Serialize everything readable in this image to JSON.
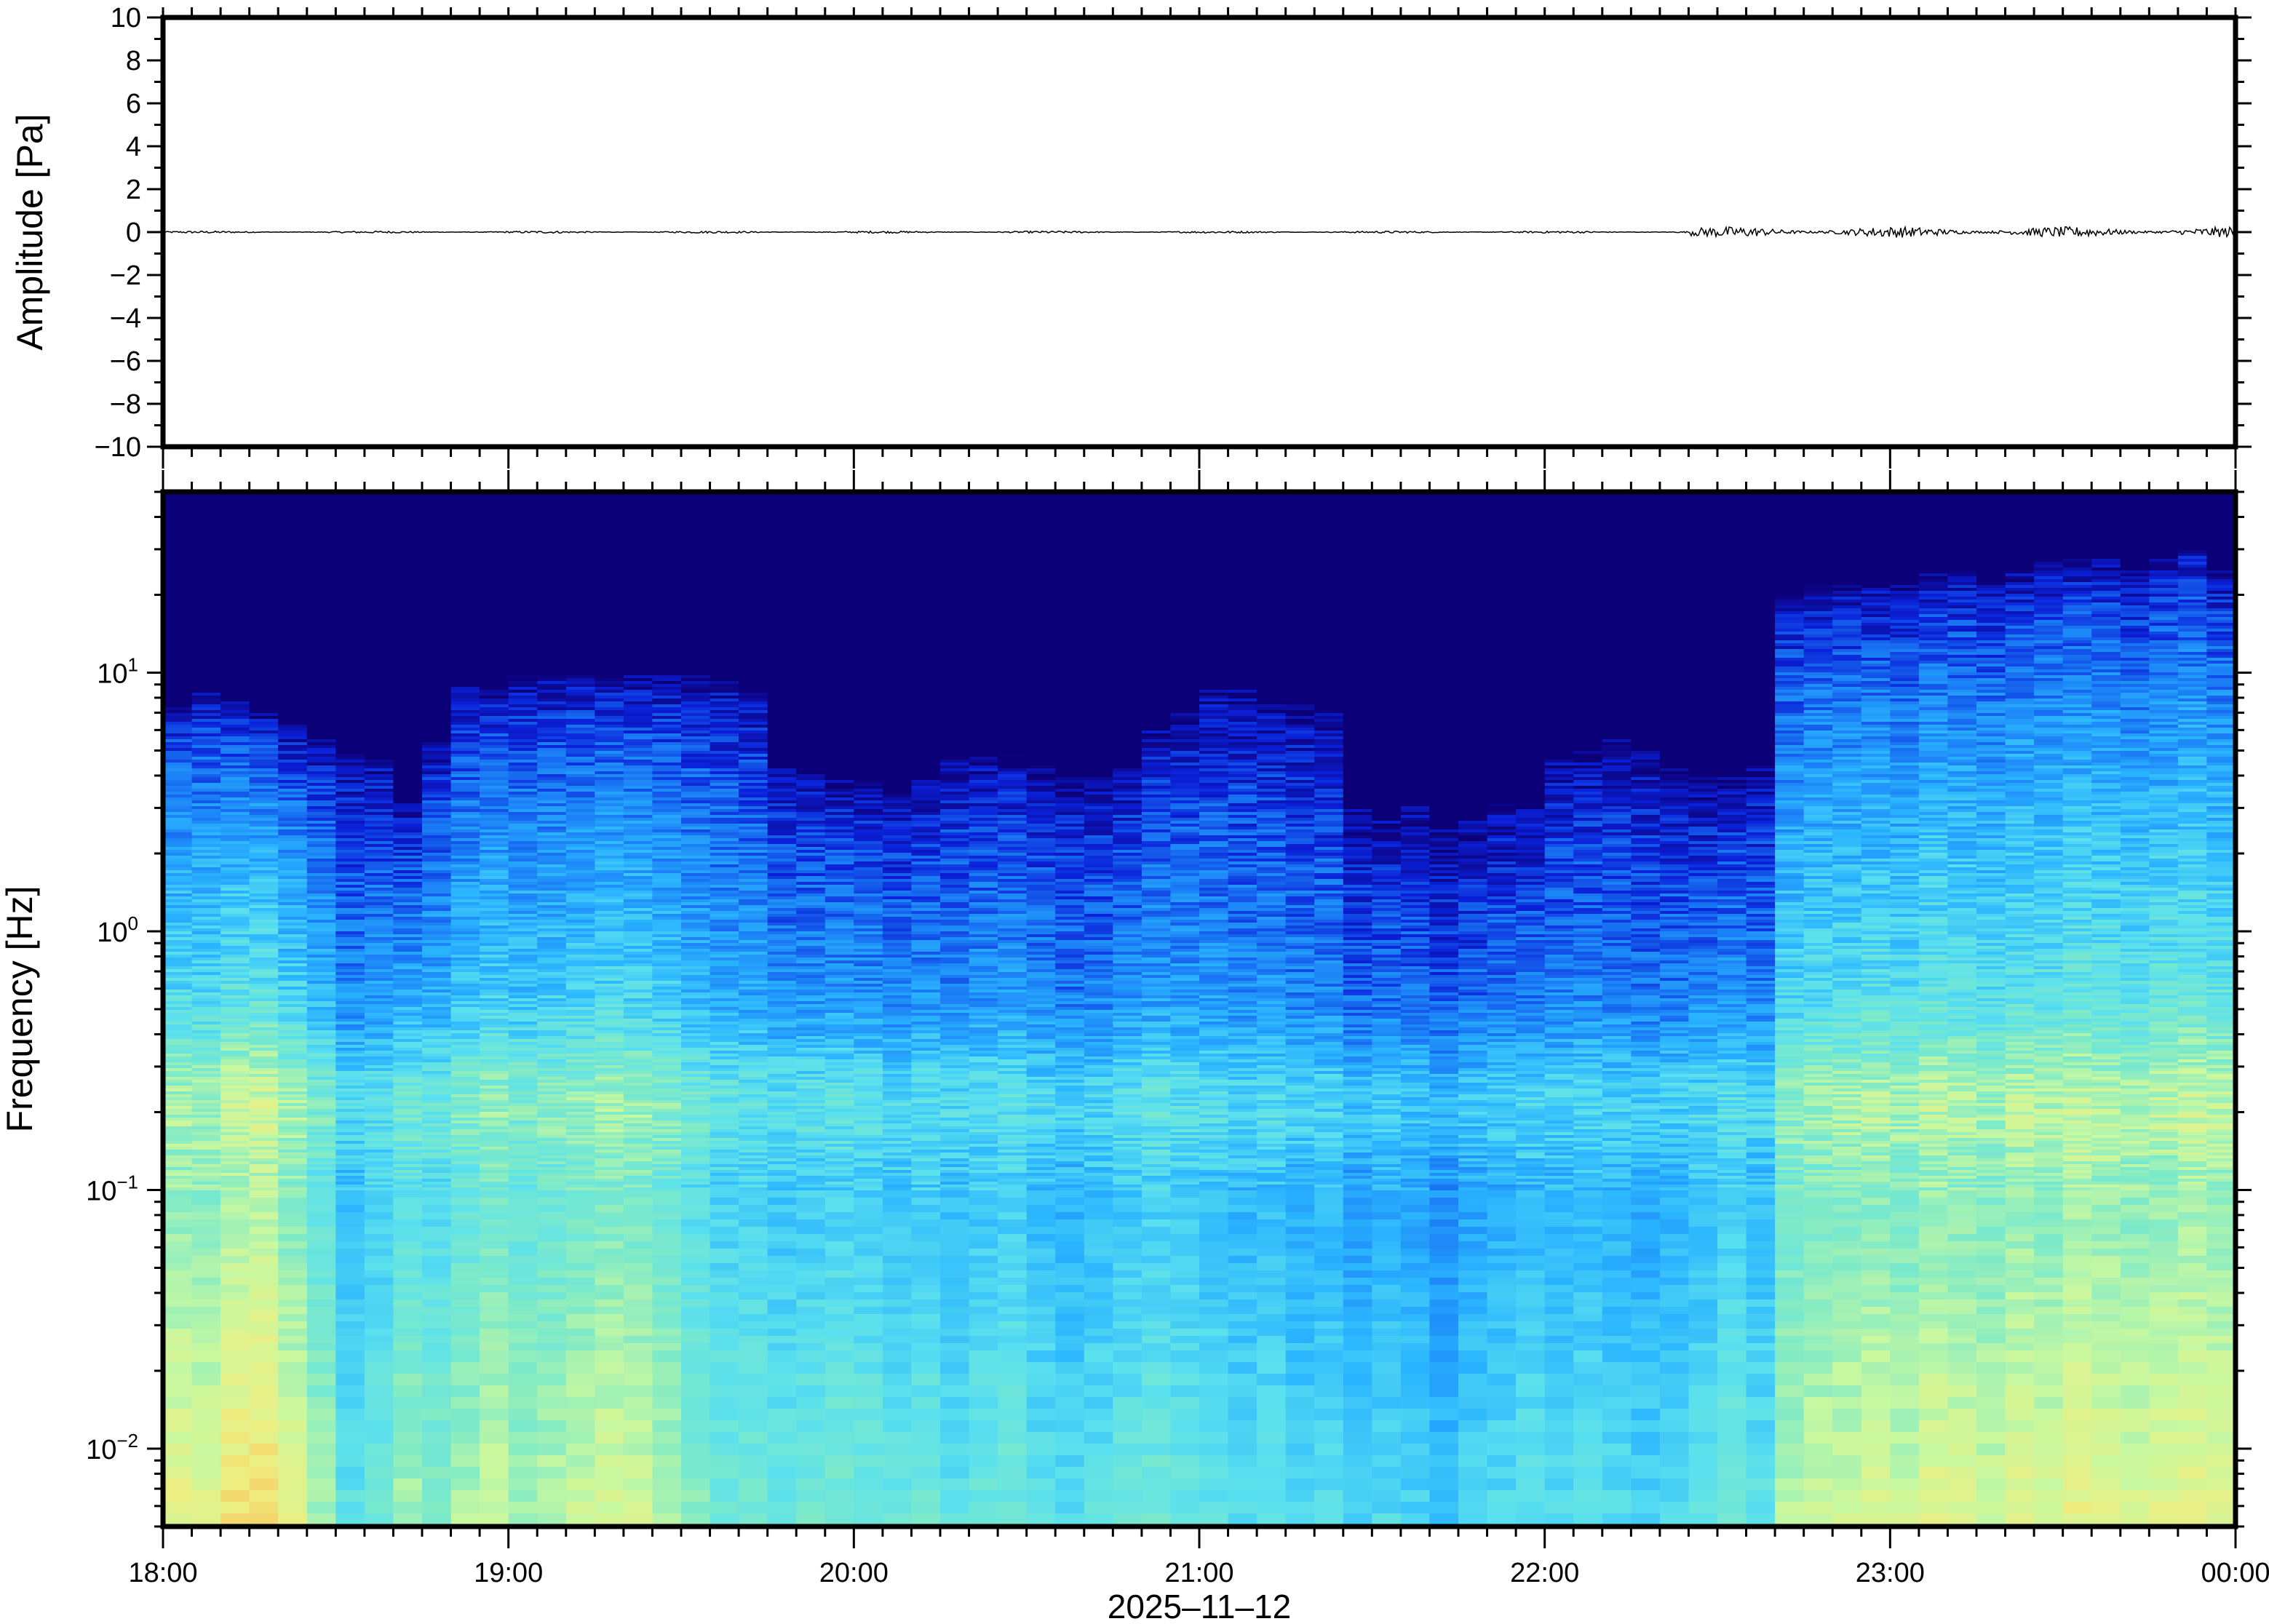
{
  "chart_data": [
    {
      "type": "line",
      "ylabel": "Amplitude [Pa]",
      "ylim": [
        -10,
        10
      ],
      "yticks": [
        "10",
        "8",
        "6",
        "4",
        "2",
        "0",
        "−2",
        "−4",
        "−6",
        "−8",
        "−10"
      ],
      "xlim": [
        "18:00",
        "00:00"
      ],
      "series_description_values": {
        "segments": [
          {
            "start": "18:00",
            "end": "22:25",
            "noise_amplitude_pa": 0.05
          },
          {
            "start": "22:25",
            "end": "00:00",
            "noise_amplitude_pa": 0.25
          }
        ]
      },
      "line_color": "#000000"
    },
    {
      "type": "heatmap",
      "ylabel": "Frequency [Hz]",
      "yscale": "log",
      "ylim_hz": [
        0.005,
        50
      ],
      "yticks": [
        {
          "base": "10",
          "exp": "1"
        },
        {
          "base": "10",
          "exp": "0"
        },
        {
          "base": "10",
          "exp": "−1"
        },
        {
          "base": "10",
          "exp": "−2"
        }
      ],
      "xlabel": "2025–11–12",
      "xticks": [
        "18:00",
        "19:00",
        "20:00",
        "21:00",
        "22:00",
        "23:00",
        "00:00"
      ],
      "xlim": [
        "18:00",
        "00:00"
      ],
      "column_minutes": 5,
      "upper_edge_log10_hz": [
        0.9,
        0.95,
        0.9,
        0.85,
        0.8,
        0.75,
        0.7,
        0.7,
        0.5,
        0.75,
        0.95,
        0.95,
        1.0,
        1.0,
        1.0,
        1.0,
        1.0,
        1.0,
        1.0,
        1.0,
        0.95,
        0.65,
        0.65,
        0.6,
        0.6,
        0.55,
        0.6,
        0.7,
        0.7,
        0.7,
        0.65,
        0.6,
        0.6,
        0.65,
        0.8,
        0.85,
        0.95,
        0.95,
        0.9,
        0.9,
        0.85,
        0.5,
        0.45,
        0.5,
        0.4,
        0.45,
        0.5,
        0.5,
        0.7,
        0.7,
        0.75,
        0.7,
        0.65,
        0.6,
        0.6,
        0.65,
        1.3,
        1.35,
        1.35,
        1.35,
        1.35,
        1.4,
        1.4,
        1.35,
        1.4,
        1.45,
        1.45,
        1.45,
        1.4,
        1.45,
        1.5,
        1.4
      ],
      "low_freq_level": [
        0.72,
        0.7,
        0.78,
        0.8,
        0.7,
        0.6,
        0.45,
        0.5,
        0.6,
        0.55,
        0.6,
        0.65,
        0.6,
        0.62,
        0.65,
        0.68,
        0.66,
        0.62,
        0.55,
        0.5,
        0.5,
        0.48,
        0.5,
        0.52,
        0.5,
        0.48,
        0.5,
        0.45,
        0.48,
        0.5,
        0.45,
        0.42,
        0.45,
        0.48,
        0.5,
        0.48,
        0.45,
        0.42,
        0.45,
        0.4,
        0.42,
        0.38,
        0.42,
        0.4,
        0.35,
        0.4,
        0.42,
        0.45,
        0.42,
        0.44,
        0.42,
        0.4,
        0.42,
        0.45,
        0.5,
        0.45,
        0.62,
        0.65,
        0.66,
        0.68,
        0.65,
        0.7,
        0.68,
        0.66,
        0.7,
        0.68,
        0.72,
        0.7,
        0.68,
        0.7,
        0.72,
        0.7
      ],
      "colormap": [
        "#0c0078",
        "#0a20d8",
        "#1a7cf5",
        "#2ab4ff",
        "#5ae0ee",
        "#7eeac8",
        "#c8f8a0",
        "#eeee80",
        "#f8c860",
        "#f0a050"
      ]
    }
  ]
}
